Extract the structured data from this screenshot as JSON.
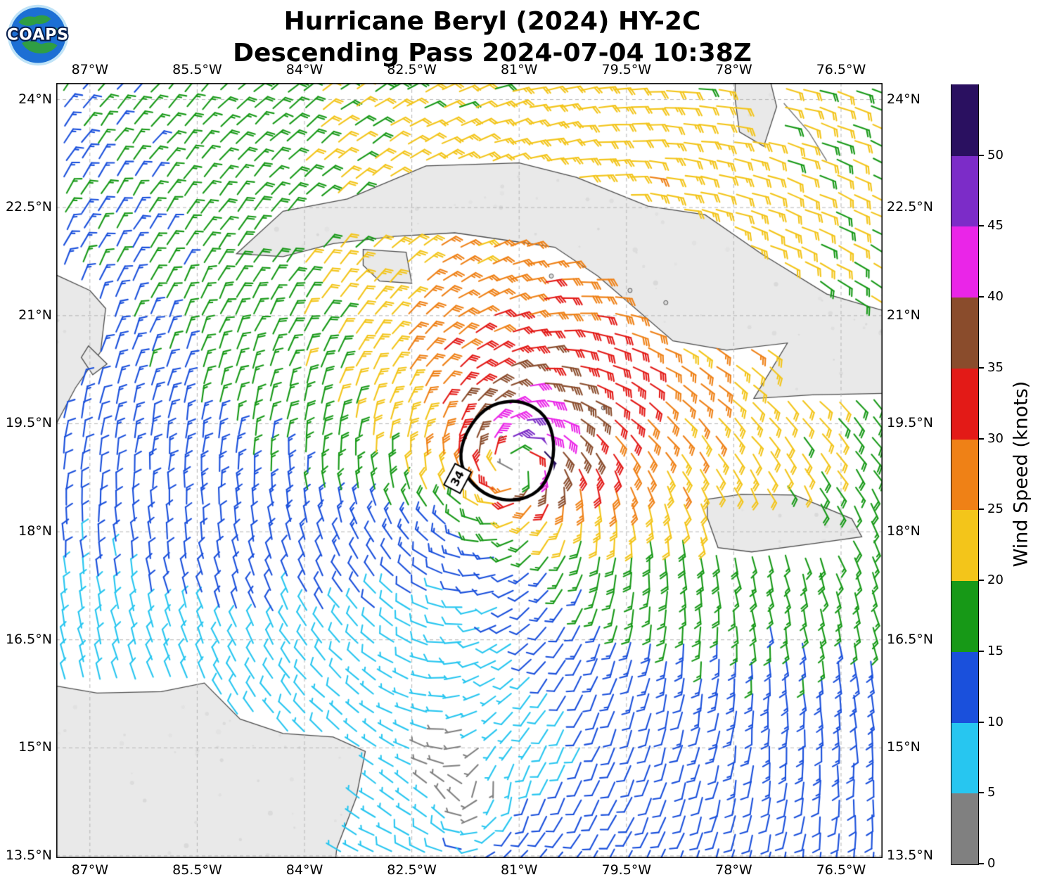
{
  "title": {
    "line1": "Hurricane Beryl (2024) HY-2C",
    "line2": "Descending Pass 2024-07-04 10:38Z"
  },
  "logo": {
    "text": "COAPS"
  },
  "map": {
    "extent": {
      "lon_min": -87.47,
      "lon_max": -75.92,
      "lat_min": 13.47,
      "lat_max": 24.23
    },
    "lon_ticks": [
      {
        "value": -87,
        "label": "87°W"
      },
      {
        "value": -85.5,
        "label": "85.5°W"
      },
      {
        "value": -84,
        "label": "84°W"
      },
      {
        "value": -82.5,
        "label": "82.5°W"
      },
      {
        "value": -81,
        "label": "81°W"
      },
      {
        "value": -79.5,
        "label": "79.5°W"
      },
      {
        "value": -78,
        "label": "78°W"
      },
      {
        "value": -76.5,
        "label": "76.5°W"
      }
    ],
    "lat_ticks": [
      {
        "value": 24,
        "label": "24°N"
      },
      {
        "value": 22.5,
        "label": "22.5°N"
      },
      {
        "value": 21,
        "label": "21°N"
      },
      {
        "value": 19.5,
        "label": "19.5°N"
      },
      {
        "value": 18,
        "label": "18°N"
      },
      {
        "value": 16.5,
        "label": "16.5°N"
      },
      {
        "value": 15,
        "label": "15°N"
      },
      {
        "value": 13.5,
        "label": "13.5°N"
      }
    ],
    "grid_color": "#b5b5b5",
    "land_color": "#e9e9e9",
    "coast_color": "#4d4d4d",
    "coastlines": {
      "cuba": [
        [
          -84.95,
          21.86
        ],
        [
          -84.3,
          22.45
        ],
        [
          -83.4,
          22.62
        ],
        [
          -82.3,
          23.08
        ],
        [
          -81.0,
          23.12
        ],
        [
          -80.2,
          22.92
        ],
        [
          -79.2,
          22.52
        ],
        [
          -78.4,
          22.4
        ],
        [
          -77.6,
          21.85
        ],
        [
          -76.7,
          21.3
        ],
        [
          -75.5,
          20.95
        ],
        [
          -75.5,
          19.93
        ],
        [
          -76.9,
          19.9
        ],
        [
          -77.72,
          19.85
        ],
        [
          -77.25,
          20.62
        ],
        [
          -78.1,
          20.52
        ],
        [
          -78.85,
          20.65
        ],
        [
          -79.9,
          21.55
        ],
        [
          -80.5,
          21.95
        ],
        [
          -81.2,
          22.05
        ],
        [
          -81.9,
          22.15
        ],
        [
          -82.75,
          22.1
        ],
        [
          -83.6,
          22.0
        ],
        [
          -84.3,
          21.82
        ]
      ],
      "isla_juventud": [
        [
          -83.18,
          21.92
        ],
        [
          -82.58,
          21.88
        ],
        [
          -82.5,
          21.45
        ],
        [
          -82.95,
          21.48
        ],
        [
          -83.18,
          21.7
        ]
      ],
      "jamaica": [
        [
          -78.37,
          18.45
        ],
        [
          -77.9,
          18.52
        ],
        [
          -77.15,
          18.51
        ],
        [
          -76.35,
          18.18
        ],
        [
          -76.21,
          17.93
        ],
        [
          -76.85,
          17.84
        ],
        [
          -77.75,
          17.72
        ],
        [
          -78.22,
          17.78
        ],
        [
          -78.37,
          18.2
        ]
      ],
      "yucatan": [
        [
          -88.5,
          22.2
        ],
        [
          -87.55,
          21.6
        ],
        [
          -87.0,
          21.35
        ],
        [
          -86.78,
          21.1
        ],
        [
          -86.85,
          20.5
        ],
        [
          -87.2,
          20.0
        ],
        [
          -87.55,
          19.35
        ],
        [
          -87.8,
          18.7
        ],
        [
          -88.5,
          18.0
        ]
      ],
      "cozumel": [
        [
          -87.02,
          20.58
        ],
        [
          -86.76,
          20.33
        ],
        [
          -86.96,
          20.18
        ],
        [
          -87.12,
          20.42
        ]
      ],
      "central_america": [
        [
          -88.5,
          16.45
        ],
        [
          -87.6,
          15.88
        ],
        [
          -86.9,
          15.76
        ],
        [
          -86.0,
          15.78
        ],
        [
          -85.4,
          15.9
        ],
        [
          -84.9,
          15.4
        ],
        [
          -84.3,
          15.2
        ],
        [
          -83.6,
          15.15
        ],
        [
          -83.15,
          14.95
        ],
        [
          -83.28,
          14.3
        ],
        [
          -83.55,
          13.6
        ],
        [
          -83.62,
          12.9
        ],
        [
          -88.5,
          12.9
        ]
      ],
      "andros": [
        [
          -77.98,
          24.3
        ],
        [
          -77.5,
          24.3
        ],
        [
          -77.4,
          23.9
        ],
        [
          -77.58,
          23.35
        ],
        [
          -77.92,
          23.55
        ],
        [
          -77.98,
          24.0
        ]
      ],
      "cay_chain": [
        [
          -77.3,
          23.95
        ],
        [
          -76.95,
          23.55
        ],
        [
          -76.7,
          23.15
        ]
      ],
      "islets": [
        [
          -79.82,
          19.72
        ],
        [
          -79.99,
          19.7
        ],
        [
          -81.25,
          19.3
        ],
        [
          -79.45,
          21.35
        ],
        [
          -78.95,
          21.18
        ],
        [
          -80.55,
          21.55
        ]
      ]
    }
  },
  "colorbar": {
    "label": "Wind Speed (knots)",
    "tick_values": [
      0,
      5,
      10,
      15,
      20,
      25,
      30,
      35,
      40,
      45,
      50
    ],
    "value_max": 55,
    "segments": [
      {
        "range": [
          0,
          5
        ],
        "color": "#808080"
      },
      {
        "range": [
          5,
          10
        ],
        "color": "#27c6f0"
      },
      {
        "range": [
          10,
          15
        ],
        "color": "#1a50dc"
      },
      {
        "range": [
          15,
          20
        ],
        "color": "#179917"
      },
      {
        "range": [
          20,
          25
        ],
        "color": "#f3c51a"
      },
      {
        "range": [
          25,
          30
        ],
        "color": "#ef8116"
      },
      {
        "range": [
          30,
          35
        ],
        "color": "#e31a17"
      },
      {
        "range": [
          35,
          40
        ],
        "color": "#8a4c2c"
      },
      {
        "range": [
          40,
          45
        ],
        "color": "#ea25e8"
      },
      {
        "range": [
          45,
          50
        ],
        "color": "#7c2cc8"
      },
      {
        "range": [
          50,
          55
        ],
        "color": "#2a1060"
      }
    ]
  },
  "chart_data": {
    "type": "wind_barb_map",
    "storm": "Hurricane Beryl (2024)",
    "satellite": "HY-2C",
    "pass": "Descending Pass 2024-07-04 10:38Z",
    "units": "knots",
    "lon_range": [
      -87.47,
      -75.92
    ],
    "lat_range": [
      13.47,
      24.23
    ],
    "grid_spacing_deg": 0.24,
    "vortex": {
      "center_lon": -81.05,
      "center_lat": 18.95,
      "vmax_kt": 43,
      "rmax_deg": 0.42,
      "decay_exp": 0.45,
      "inflow_deg": 20,
      "asym_sin": 0.2,
      "asym_cos": 0.1
    },
    "secondary_vortex": {
      "center_lon": -81.5,
      "center_lat": 13.9,
      "vmax_kt": 7,
      "rmax_deg": 0.6,
      "decay_exp": 0.8
    },
    "background_flow": {
      "u_kt": -4.5,
      "v_kt": 0
    },
    "contour_34kt": {
      "label": "34",
      "label_pos": [
        -81.86,
        18.74
      ],
      "label_rotation_deg": -62,
      "points": [
        [
          -81.3,
          19.8
        ],
        [
          -80.95,
          19.82
        ],
        [
          -80.62,
          19.62
        ],
        [
          -80.5,
          19.25
        ],
        [
          -80.55,
          18.85
        ],
        [
          -80.72,
          18.55
        ],
        [
          -81.05,
          18.42
        ],
        [
          -81.42,
          18.48
        ],
        [
          -81.7,
          18.7
        ],
        [
          -81.84,
          19.0
        ],
        [
          -81.76,
          19.35
        ],
        [
          -81.55,
          19.65
        ]
      ]
    },
    "speed_bins_kt": [
      0,
      5,
      10,
      15,
      20,
      25,
      30,
      35,
      40,
      45,
      50,
      55
    ]
  }
}
